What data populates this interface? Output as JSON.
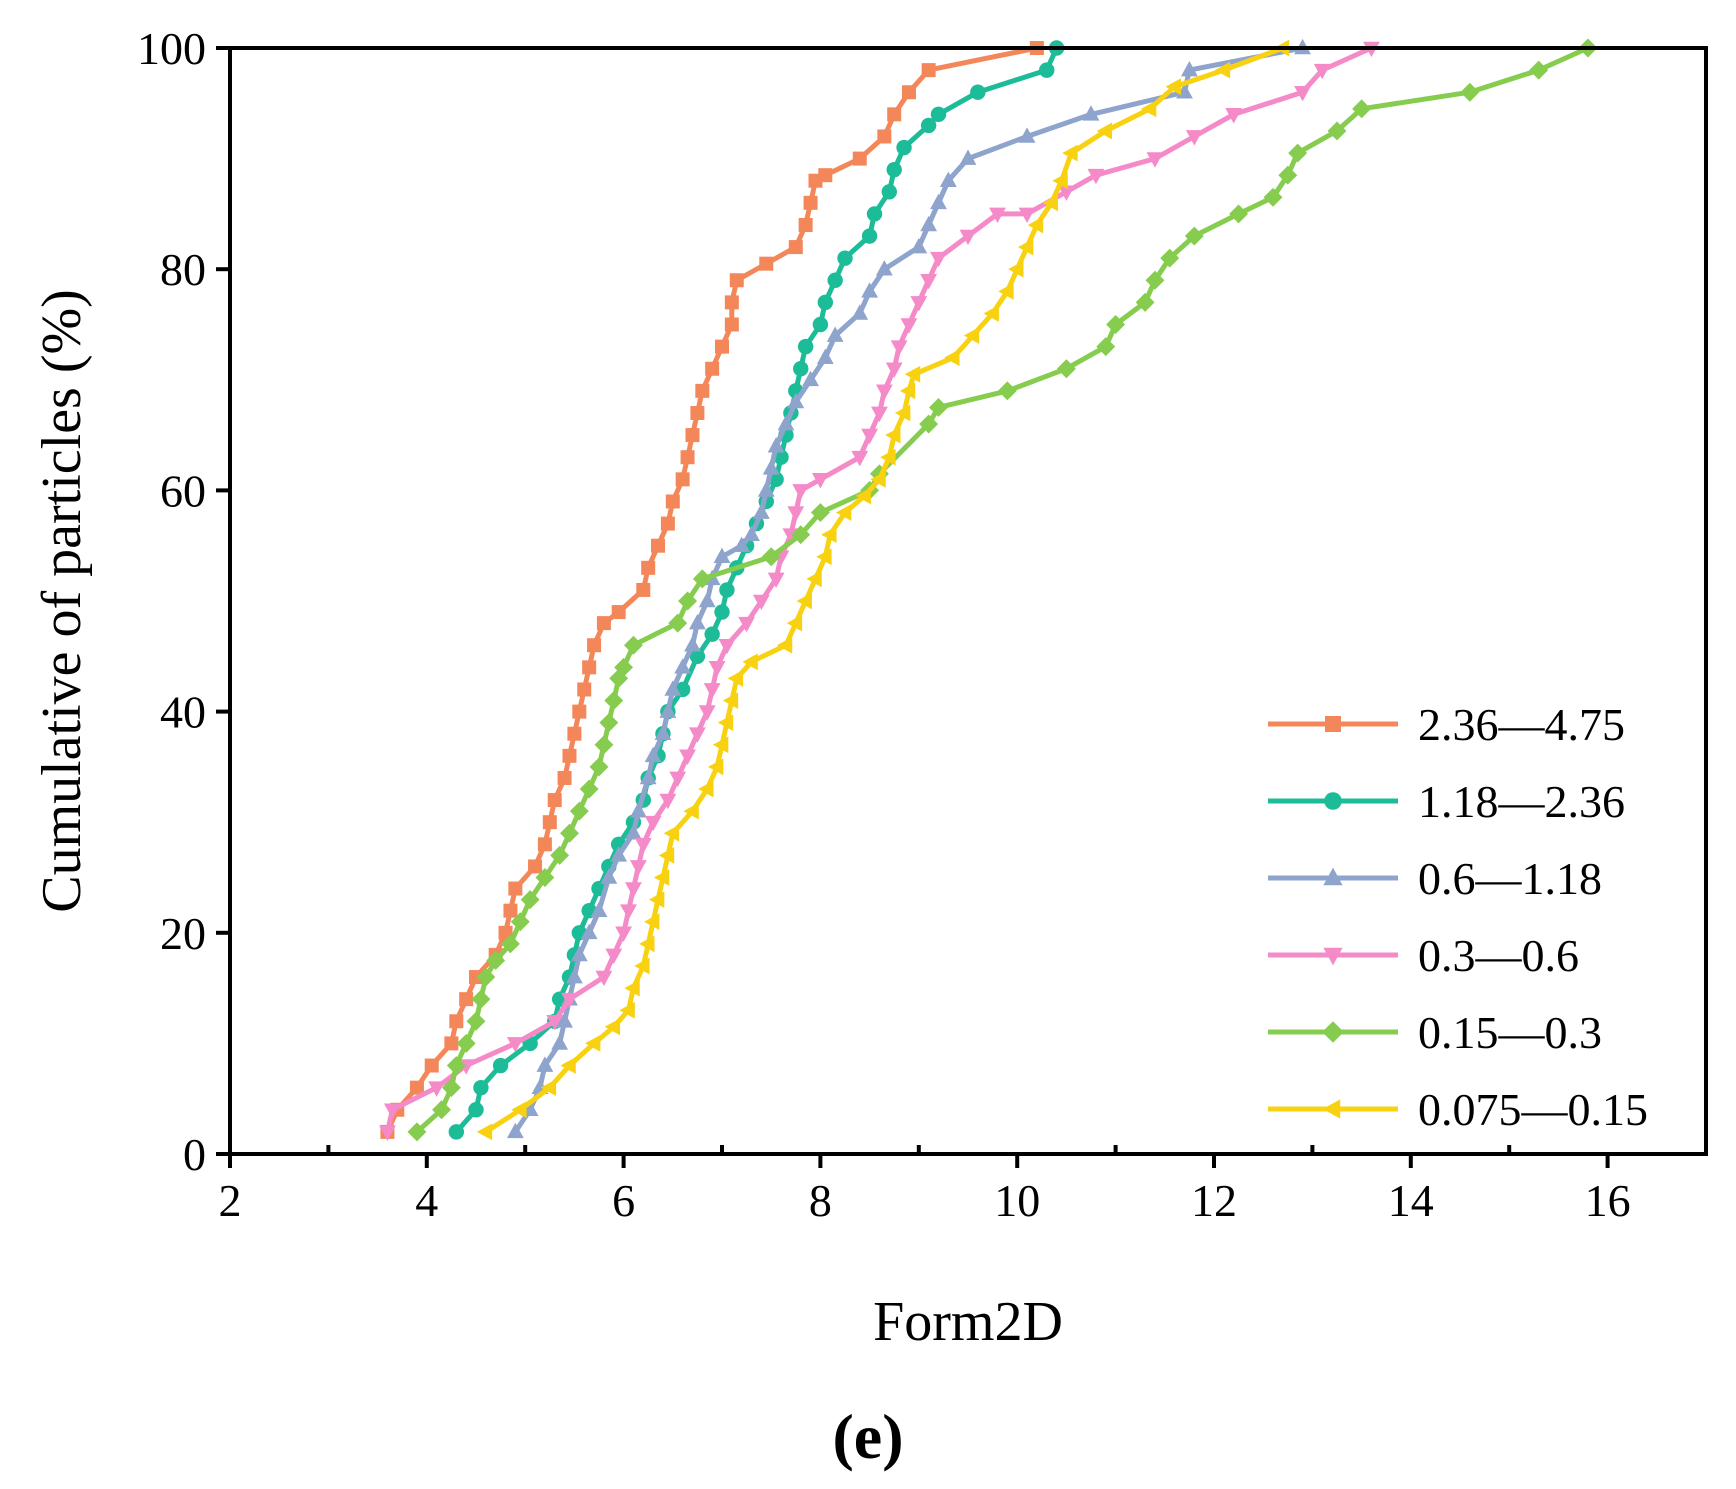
{
  "chart_data": {
    "type": "line",
    "title": "",
    "panel_label": "(e)",
    "xlabel": "Form2D",
    "ylabel": "Cumulative of particles (%)",
    "xlim": [
      2,
      17
    ],
    "ylim": [
      0,
      100
    ],
    "x_ticks": [
      2,
      4,
      6,
      8,
      10,
      12,
      14,
      16
    ],
    "x_tick_labels": [
      "2",
      "4",
      "6",
      "8",
      "10",
      "12",
      "14",
      "16"
    ],
    "x_minor_ticks": [
      3,
      5,
      7,
      9,
      11,
      13,
      15
    ],
    "y_ticks": [
      0,
      20,
      40,
      60,
      80,
      100
    ],
    "y_tick_labels": [
      "0",
      "20",
      "40",
      "60",
      "80",
      "100"
    ],
    "grid": false,
    "legend_position": "bottom-right",
    "series": [
      {
        "name": "2.36—4.75",
        "color": "#f4875a",
        "marker": "square",
        "points": [
          [
            3.6,
            2
          ],
          [
            3.7,
            4
          ],
          [
            3.9,
            6
          ],
          [
            4.05,
            8
          ],
          [
            4.25,
            10
          ],
          [
            4.3,
            12
          ],
          [
            4.4,
            14
          ],
          [
            4.5,
            16
          ],
          [
            4.7,
            18
          ],
          [
            4.8,
            20
          ],
          [
            4.85,
            22
          ],
          [
            4.9,
            24
          ],
          [
            5.1,
            26
          ],
          [
            5.2,
            28
          ],
          [
            5.25,
            30
          ],
          [
            5.3,
            32
          ],
          [
            5.4,
            34
          ],
          [
            5.45,
            36
          ],
          [
            5.5,
            38
          ],
          [
            5.55,
            40
          ],
          [
            5.6,
            42
          ],
          [
            5.65,
            44
          ],
          [
            5.7,
            46
          ],
          [
            5.8,
            48
          ],
          [
            5.95,
            49
          ],
          [
            6.2,
            51
          ],
          [
            6.25,
            53
          ],
          [
            6.35,
            55
          ],
          [
            6.45,
            57
          ],
          [
            6.5,
            59
          ],
          [
            6.6,
            61
          ],
          [
            6.65,
            63
          ],
          [
            6.7,
            65
          ],
          [
            6.75,
            67
          ],
          [
            6.8,
            69
          ],
          [
            6.9,
            71
          ],
          [
            7.0,
            73
          ],
          [
            7.1,
            75
          ],
          [
            7.1,
            77
          ],
          [
            7.15,
            79
          ],
          [
            7.45,
            80.5
          ],
          [
            7.75,
            82
          ],
          [
            7.85,
            84
          ],
          [
            7.9,
            86
          ],
          [
            7.95,
            88
          ],
          [
            8.05,
            88.5
          ],
          [
            8.4,
            90
          ],
          [
            8.65,
            92
          ],
          [
            8.75,
            94
          ],
          [
            8.9,
            96
          ],
          [
            9.1,
            98
          ],
          [
            10.2,
            100
          ]
        ]
      },
      {
        "name": "1.18—2.36",
        "color": "#1cbc99",
        "marker": "circle",
        "points": [
          [
            4.3,
            2
          ],
          [
            4.5,
            4
          ],
          [
            4.55,
            6
          ],
          [
            4.75,
            8
          ],
          [
            5.05,
            10
          ],
          [
            5.3,
            12
          ],
          [
            5.35,
            14
          ],
          [
            5.45,
            16
          ],
          [
            5.5,
            18
          ],
          [
            5.55,
            20
          ],
          [
            5.65,
            22
          ],
          [
            5.75,
            24
          ],
          [
            5.85,
            26
          ],
          [
            5.95,
            28
          ],
          [
            6.1,
            30
          ],
          [
            6.2,
            32
          ],
          [
            6.25,
            34
          ],
          [
            6.35,
            36
          ],
          [
            6.4,
            38
          ],
          [
            6.45,
            40
          ],
          [
            6.6,
            42
          ],
          [
            6.75,
            45
          ],
          [
            6.9,
            47
          ],
          [
            7.0,
            49
          ],
          [
            7.05,
            51
          ],
          [
            7.15,
            53
          ],
          [
            7.25,
            55
          ],
          [
            7.35,
            57
          ],
          [
            7.45,
            59
          ],
          [
            7.55,
            61
          ],
          [
            7.6,
            63
          ],
          [
            7.65,
            65
          ],
          [
            7.7,
            67
          ],
          [
            7.75,
            69
          ],
          [
            7.8,
            71
          ],
          [
            7.85,
            73
          ],
          [
            8.0,
            75
          ],
          [
            8.05,
            77
          ],
          [
            8.15,
            79
          ],
          [
            8.25,
            81
          ],
          [
            8.5,
            83
          ],
          [
            8.55,
            85
          ],
          [
            8.7,
            87
          ],
          [
            8.75,
            89
          ],
          [
            8.85,
            91
          ],
          [
            9.1,
            93
          ],
          [
            9.2,
            94
          ],
          [
            9.6,
            96
          ],
          [
            10.3,
            98
          ],
          [
            10.4,
            100
          ]
        ]
      },
      {
        "name": "0.6—1.18",
        "color": "#8ea4cc",
        "marker": "triangle-up",
        "points": [
          [
            4.9,
            2
          ],
          [
            5.05,
            4
          ],
          [
            5.15,
            6
          ],
          [
            5.2,
            8
          ],
          [
            5.35,
            10
          ],
          [
            5.4,
            12
          ],
          [
            5.45,
            14
          ],
          [
            5.5,
            16
          ],
          [
            5.55,
            18
          ],
          [
            5.65,
            20
          ],
          [
            5.75,
            22
          ],
          [
            5.85,
            25
          ],
          [
            5.95,
            27
          ],
          [
            6.1,
            29
          ],
          [
            6.15,
            31
          ],
          [
            6.25,
            34
          ],
          [
            6.3,
            36
          ],
          [
            6.4,
            38
          ],
          [
            6.45,
            40
          ],
          [
            6.5,
            42
          ],
          [
            6.6,
            44
          ],
          [
            6.7,
            46
          ],
          [
            6.75,
            48
          ],
          [
            6.85,
            50
          ],
          [
            6.9,
            52
          ],
          [
            7.0,
            54
          ],
          [
            7.2,
            55
          ],
          [
            7.3,
            56
          ],
          [
            7.4,
            58
          ],
          [
            7.45,
            60
          ],
          [
            7.5,
            62
          ],
          [
            7.55,
            64
          ],
          [
            7.65,
            66
          ],
          [
            7.75,
            68
          ],
          [
            7.9,
            70
          ],
          [
            8.05,
            72
          ],
          [
            8.15,
            74
          ],
          [
            8.4,
            76
          ],
          [
            8.5,
            78
          ],
          [
            8.65,
            80
          ],
          [
            9.0,
            82
          ],
          [
            9.1,
            84
          ],
          [
            9.2,
            86
          ],
          [
            9.3,
            88
          ],
          [
            9.5,
            90
          ],
          [
            10.1,
            92
          ],
          [
            10.75,
            94
          ],
          [
            11.7,
            96
          ],
          [
            11.75,
            98
          ],
          [
            12.9,
            100
          ]
        ]
      },
      {
        "name": "0.3—0.6",
        "color": "#f58ac8",
        "marker": "triangle-down",
        "points": [
          [
            3.6,
            2
          ],
          [
            3.65,
            4
          ],
          [
            4.1,
            6
          ],
          [
            4.4,
            8
          ],
          [
            4.9,
            10
          ],
          [
            5.3,
            12
          ],
          [
            5.45,
            14
          ],
          [
            5.8,
            16
          ],
          [
            5.9,
            18
          ],
          [
            6.0,
            20
          ],
          [
            6.05,
            22
          ],
          [
            6.1,
            24
          ],
          [
            6.15,
            26
          ],
          [
            6.2,
            28
          ],
          [
            6.3,
            30
          ],
          [
            6.45,
            32
          ],
          [
            6.55,
            34
          ],
          [
            6.65,
            36
          ],
          [
            6.75,
            38
          ],
          [
            6.85,
            40
          ],
          [
            6.9,
            42
          ],
          [
            6.95,
            44
          ],
          [
            7.05,
            46
          ],
          [
            7.25,
            48
          ],
          [
            7.4,
            50
          ],
          [
            7.55,
            52
          ],
          [
            7.6,
            54
          ],
          [
            7.7,
            56
          ],
          [
            7.75,
            58
          ],
          [
            7.8,
            60
          ],
          [
            8.0,
            61
          ],
          [
            8.4,
            63
          ],
          [
            8.5,
            65
          ],
          [
            8.6,
            67
          ],
          [
            8.65,
            69
          ],
          [
            8.75,
            71
          ],
          [
            8.8,
            73
          ],
          [
            8.9,
            75
          ],
          [
            9.0,
            77
          ],
          [
            9.1,
            79
          ],
          [
            9.2,
            81
          ],
          [
            9.5,
            83
          ],
          [
            9.8,
            85
          ],
          [
            10.1,
            85
          ],
          [
            10.5,
            87
          ],
          [
            10.8,
            88.5
          ],
          [
            11.4,
            90
          ],
          [
            11.8,
            92
          ],
          [
            12.2,
            94
          ],
          [
            12.9,
            96
          ],
          [
            13.1,
            98
          ],
          [
            13.6,
            100
          ]
        ]
      },
      {
        "name": "0.15—0.3",
        "color": "#86cc4e",
        "marker": "diamond",
        "points": [
          [
            3.9,
            2
          ],
          [
            4.15,
            4
          ],
          [
            4.25,
            6
          ],
          [
            4.3,
            8
          ],
          [
            4.4,
            10
          ],
          [
            4.5,
            12
          ],
          [
            4.55,
            14
          ],
          [
            4.6,
            16
          ],
          [
            4.7,
            17.5
          ],
          [
            4.85,
            19
          ],
          [
            4.95,
            21
          ],
          [
            5.05,
            23
          ],
          [
            5.2,
            25
          ],
          [
            5.35,
            27
          ],
          [
            5.45,
            29
          ],
          [
            5.55,
            31
          ],
          [
            5.65,
            33
          ],
          [
            5.75,
            35
          ],
          [
            5.8,
            37
          ],
          [
            5.85,
            39
          ],
          [
            5.9,
            41
          ],
          [
            5.95,
            43
          ],
          [
            6.0,
            44
          ],
          [
            6.1,
            46
          ],
          [
            6.55,
            48
          ],
          [
            6.65,
            50
          ],
          [
            6.8,
            52
          ],
          [
            7.5,
            54
          ],
          [
            7.8,
            56
          ],
          [
            8.0,
            58
          ],
          [
            8.5,
            60
          ],
          [
            8.6,
            61.5
          ],
          [
            9.1,
            66
          ],
          [
            9.2,
            67.5
          ],
          [
            9.9,
            69
          ],
          [
            10.5,
            71
          ],
          [
            10.9,
            73
          ],
          [
            11.0,
            75
          ],
          [
            11.3,
            77
          ],
          [
            11.4,
            79
          ],
          [
            11.55,
            81
          ],
          [
            11.8,
            83
          ],
          [
            12.25,
            85
          ],
          [
            12.6,
            86.5
          ],
          [
            12.75,
            88.5
          ],
          [
            12.85,
            90.5
          ],
          [
            13.25,
            92.5
          ],
          [
            13.5,
            94.5
          ],
          [
            14.6,
            96
          ],
          [
            15.3,
            98
          ],
          [
            15.8,
            100
          ]
        ]
      },
      {
        "name": "0.075—0.15",
        "color": "#f8d211",
        "marker": "triangle-left",
        "points": [
          [
            4.6,
            2
          ],
          [
            4.95,
            4
          ],
          [
            5.25,
            6
          ],
          [
            5.45,
            8
          ],
          [
            5.7,
            10
          ],
          [
            5.9,
            11.5
          ],
          [
            6.05,
            13
          ],
          [
            6.1,
            15
          ],
          [
            6.2,
            17
          ],
          [
            6.25,
            19
          ],
          [
            6.3,
            21
          ],
          [
            6.35,
            23
          ],
          [
            6.4,
            25
          ],
          [
            6.45,
            27
          ],
          [
            6.5,
            29
          ],
          [
            6.7,
            31
          ],
          [
            6.85,
            33
          ],
          [
            6.95,
            35
          ],
          [
            7.0,
            37
          ],
          [
            7.05,
            39
          ],
          [
            7.1,
            41
          ],
          [
            7.15,
            43
          ],
          [
            7.3,
            44.5
          ],
          [
            7.65,
            46
          ],
          [
            7.75,
            48
          ],
          [
            7.85,
            50
          ],
          [
            7.95,
            52
          ],
          [
            8.05,
            54
          ],
          [
            8.1,
            56
          ],
          [
            8.25,
            58
          ],
          [
            8.45,
            59.5
          ],
          [
            8.6,
            61
          ],
          [
            8.7,
            63
          ],
          [
            8.75,
            65
          ],
          [
            8.85,
            67
          ],
          [
            8.9,
            69
          ],
          [
            8.95,
            70.5
          ],
          [
            9.35,
            72
          ],
          [
            9.55,
            74
          ],
          [
            9.75,
            76
          ],
          [
            9.9,
            78
          ],
          [
            10.0,
            80
          ],
          [
            10.1,
            82
          ],
          [
            10.2,
            84
          ],
          [
            10.35,
            86
          ],
          [
            10.45,
            88
          ],
          [
            10.55,
            90.5
          ],
          [
            10.9,
            92.5
          ],
          [
            11.35,
            94.5
          ],
          [
            11.6,
            96.5
          ],
          [
            12.1,
            98
          ],
          [
            12.7,
            100
          ]
        ]
      }
    ]
  }
}
